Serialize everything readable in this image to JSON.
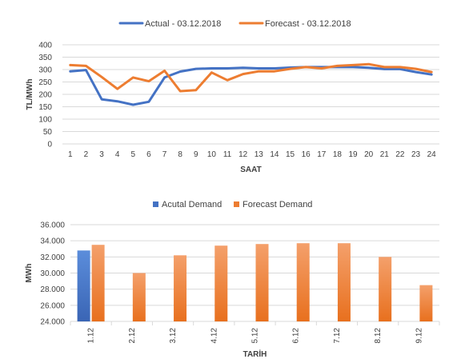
{
  "colors": {
    "actual": "#4472C4",
    "forecast": "#ED7D31",
    "grid": "#D9D9D9",
    "text": "#404040"
  },
  "chart_data": [
    {
      "type": "line",
      "x": [
        1,
        2,
        3,
        4,
        5,
        6,
        7,
        8,
        9,
        10,
        11,
        12,
        13,
        14,
        15,
        16,
        17,
        18,
        19,
        20,
        21,
        22,
        23,
        24
      ],
      "series": [
        {
          "name": "Actual - 03.12.2018",
          "values": [
            293,
            298,
            180,
            172,
            158,
            170,
            268,
            292,
            303,
            305,
            305,
            307,
            305,
            305,
            308,
            310,
            310,
            310,
            310,
            307,
            302,
            302,
            290,
            280
          ]
        },
        {
          "name": "Forecast - 03.12.2018",
          "values": [
            318,
            315,
            270,
            222,
            268,
            253,
            295,
            213,
            217,
            288,
            257,
            282,
            293,
            293,
            303,
            310,
            305,
            315,
            318,
            322,
            310,
            310,
            303,
            290
          ]
        }
      ],
      "xlabel": "SAAT",
      "ylabel": "TL/MWh",
      "ylim": [
        0,
        400
      ],
      "yticks": [
        0,
        50,
        100,
        150,
        200,
        250,
        300,
        350,
        400
      ],
      "grid": true,
      "legend": "top"
    },
    {
      "type": "bar",
      "categories": [
        "1.12",
        "2.12",
        "3.12",
        "4.12",
        "5.12",
        "6.12",
        "7.12",
        "8.12",
        "9.12"
      ],
      "series": [
        {
          "name": "Acutal Demand",
          "values": [
            32800,
            null,
            null,
            null,
            null,
            null,
            null,
            null,
            null
          ]
        },
        {
          "name": "Forecast Demand",
          "values": [
            33500,
            30000,
            32200,
            33400,
            33600,
            33700,
            33700,
            32000,
            28500
          ]
        }
      ],
      "xlabel": "TARİH",
      "ylabel": "MWh",
      "ylim": [
        24000,
        36000
      ],
      "yticks": [
        "24.000",
        "26.000",
        "28.000",
        "30.000",
        "32.000",
        "34.000",
        "36.000"
      ],
      "grid": true,
      "legend": "top"
    }
  ]
}
